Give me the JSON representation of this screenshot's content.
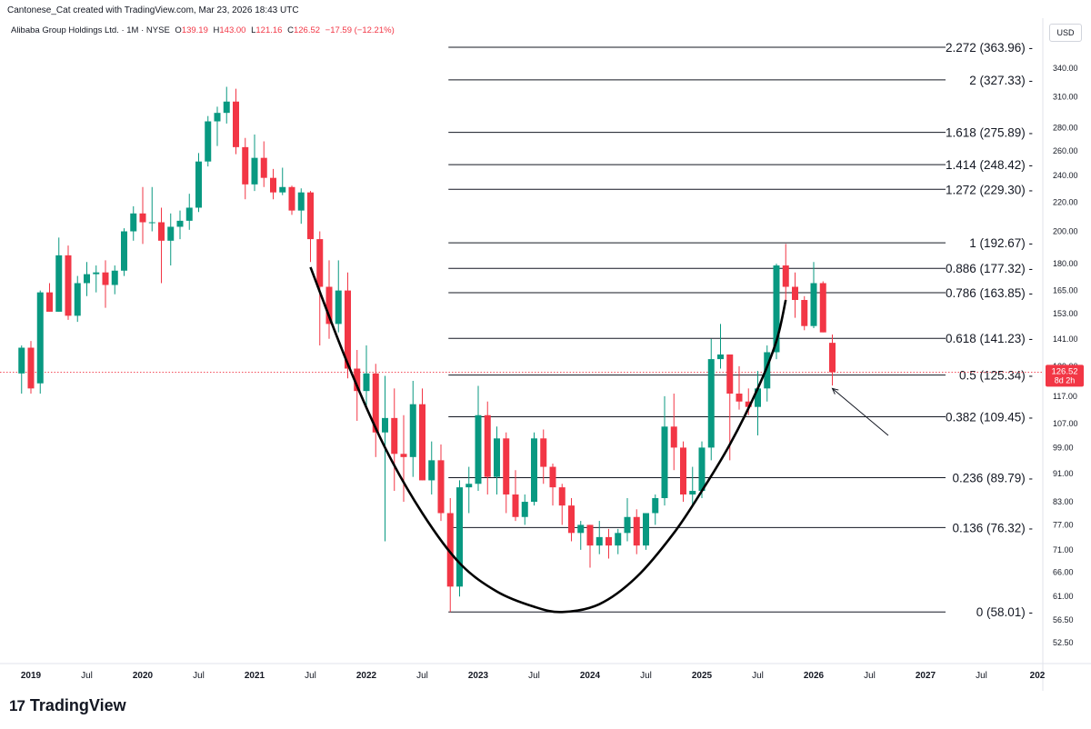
{
  "header": {
    "attribution": "Cantonese_Cat created with TradingView.com, Mar 23, 2026 18:43 UTC"
  },
  "symbol_line": {
    "name": "Alibaba Group Holdings Ltd. · 1M · NYSE",
    "o_label": "O",
    "o_value": "139.19",
    "h_label": "H",
    "h_value": "143.00",
    "l_label": "L",
    "l_value": "121.16",
    "c_label": "C",
    "c_value": "126.52",
    "change": "−17.59 (−12.21%)"
  },
  "currency": "USD",
  "footer": {
    "logo_mark": "17",
    "logo_text": "TradingView"
  },
  "colors": {
    "up": "#089981",
    "down": "#f23645",
    "fib_line": "#131722",
    "grid": "#ffffff"
  },
  "chart_data": {
    "type": "candlestick",
    "symbol": "Alibaba Group Holdings Ltd.",
    "interval": "1M",
    "y_scale": "log",
    "ylim": [
      48,
      420
    ],
    "xlim": [
      "2019-01",
      "2028-07"
    ],
    "y_ticks": [
      "52.50",
      "56.50",
      "61.00",
      "66.00",
      "71.00",
      "77.00",
      "83.00",
      "91.00",
      "99.00",
      "107.00",
      "117.00",
      "129.00",
      "141.00",
      "153.00",
      "165.00",
      "180.00",
      "200.00",
      "220.00",
      "240.00",
      "260.00",
      "280.00",
      "310.00",
      "340.00"
    ],
    "x_ticks": [
      {
        "label": "2019",
        "date": "2019-01"
      },
      {
        "label": "Jul",
        "date": "2019-07"
      },
      {
        "label": "2020",
        "date": "2020-01"
      },
      {
        "label": "Jul",
        "date": "2020-07"
      },
      {
        "label": "2021",
        "date": "2021-01"
      },
      {
        "label": "Jul",
        "date": "2021-07"
      },
      {
        "label": "2022",
        "date": "2022-01"
      },
      {
        "label": "Jul",
        "date": "2022-07"
      },
      {
        "label": "2023",
        "date": "2023-01"
      },
      {
        "label": "Jul",
        "date": "2023-07"
      },
      {
        "label": "2024",
        "date": "2024-01"
      },
      {
        "label": "Jul",
        "date": "2024-07"
      },
      {
        "label": "2025",
        "date": "2025-01"
      },
      {
        "label": "Jul",
        "date": "2025-07"
      },
      {
        "label": "2026",
        "date": "2026-01"
      },
      {
        "label": "Jul",
        "date": "2026-07"
      },
      {
        "label": "2027",
        "date": "2027-01"
      },
      {
        "label": "Jul",
        "date": "2027-07"
      },
      {
        "label": "202",
        "date": "2028-01"
      }
    ],
    "fib_levels": [
      {
        "label": "2.272 (363.96)",
        "value": 363.96
      },
      {
        "label": "2 (327.33)",
        "value": 327.33
      },
      {
        "label": "1.618 (275.89)",
        "value": 275.89
      },
      {
        "label": "1.414 (248.42)",
        "value": 248.42
      },
      {
        "label": "1.272 (229.30)",
        "value": 229.3
      },
      {
        "label": "1 (192.67)",
        "value": 192.67
      },
      {
        "label": "0.886 (177.32)",
        "value": 177.32
      },
      {
        "label": "0.786 (163.85)",
        "value": 163.85
      },
      {
        "label": "0.618 (141.23)",
        "value": 141.23
      },
      {
        "label": "0.5 (125.34)",
        "value": 125.34
      },
      {
        "label": "0.382 (109.45)",
        "value": 109.45
      },
      {
        "label": "0.236 (89.79)",
        "value": 89.79
      },
      {
        "label": "0.136 (76.32)",
        "value": 76.32
      },
      {
        "label": "0 (58.01)",
        "value": 58.01
      }
    ],
    "fib_start_date": "2022-10",
    "last_price": {
      "value": 126.52,
      "label": "126.52",
      "countdown": "8d 2h"
    },
    "cup_curve": [
      [
        "2021-07",
        178
      ],
      [
        "2021-11",
        130
      ],
      [
        "2022-03",
        99
      ],
      [
        "2022-07",
        80
      ],
      [
        "2022-11",
        68
      ],
      [
        "2023-03",
        62
      ],
      [
        "2023-07",
        59
      ],
      [
        "2023-10",
        58
      ],
      [
        "2024-02",
        59.5
      ],
      [
        "2024-06",
        65
      ],
      [
        "2024-10",
        75
      ],
      [
        "2025-01",
        86
      ],
      [
        "2025-04",
        100
      ],
      [
        "2025-07",
        120
      ],
      [
        "2025-09",
        140
      ],
      [
        "2025-10",
        160
      ]
    ],
    "arrow": {
      "from": [
        "2026-09",
        103
      ],
      "to": [
        "2026-03",
        120
      ]
    },
    "candles": [
      [
        "2018-12",
        126,
        138,
        118,
        137
      ],
      [
        "2019-01",
        137,
        140,
        118,
        120
      ],
      [
        "2019-02",
        122,
        165,
        118,
        164
      ],
      [
        "2019-03",
        164,
        169,
        154,
        154
      ],
      [
        "2019-04",
        154,
        196,
        154,
        185
      ],
      [
        "2019-05",
        185,
        191,
        150,
        152
      ],
      [
        "2019-06",
        152,
        173,
        149,
        169
      ],
      [
        "2019-07",
        169,
        181,
        162,
        174
      ],
      [
        "2019-08",
        174,
        179,
        164,
        175
      ],
      [
        "2019-09",
        175,
        182,
        156,
        168
      ],
      [
        "2019-10",
        168,
        179,
        163,
        176
      ],
      [
        "2019-11",
        176,
        202,
        173,
        200
      ],
      [
        "2019-12",
        200,
        217,
        194,
        212
      ],
      [
        "2020-01",
        212,
        231,
        192,
        206
      ],
      [
        "2020-02",
        206,
        231,
        200,
        206
      ],
      [
        "2020-03",
        206,
        216,
        169,
        194
      ],
      [
        "2020-04",
        194,
        212,
        179,
        203
      ],
      [
        "2020-05",
        203,
        214,
        195,
        207
      ],
      [
        "2020-06",
        207,
        226,
        201,
        216
      ],
      [
        "2020-07",
        216,
        258,
        213,
        251
      ],
      [
        "2020-08",
        251,
        291,
        247,
        286
      ],
      [
        "2020-09",
        286,
        300,
        264,
        294
      ],
      [
        "2020-10",
        294,
        320,
        284,
        305
      ],
      [
        "2020-11",
        305,
        318,
        257,
        263
      ],
      [
        "2020-12",
        263,
        271,
        222,
        233
      ],
      [
        "2021-01",
        233,
        274,
        228,
        254
      ],
      [
        "2021-02",
        254,
        268,
        231,
        238
      ],
      [
        "2021-03",
        238,
        245,
        222,
        227
      ],
      [
        "2021-04",
        227,
        246,
        225,
        231
      ],
      [
        "2021-05",
        231,
        232,
        211,
        214
      ],
      [
        "2021-06",
        214,
        230,
        205,
        227
      ],
      [
        "2021-07",
        227,
        228,
        181,
        195
      ],
      [
        "2021-08",
        195,
        200,
        138,
        167
      ],
      [
        "2021-09",
        167,
        182,
        141,
        148
      ],
      [
        "2021-10",
        148,
        182,
        144,
        165
      ],
      [
        "2021-11",
        165,
        175,
        124,
        128
      ],
      [
        "2021-12",
        128,
        136,
        108,
        119
      ],
      [
        "2022-01",
        119,
        138,
        113,
        126
      ],
      [
        "2022-02",
        126,
        130,
        96,
        104
      ],
      [
        "2022-03",
        104,
        125,
        73,
        109
      ],
      [
        "2022-04",
        109,
        120,
        86,
        97
      ],
      [
        "2022-05",
        97,
        110,
        83,
        96
      ],
      [
        "2022-06",
        96,
        123,
        90,
        114
      ],
      [
        "2022-07",
        114,
        120,
        89,
        89
      ],
      [
        "2022-08",
        89,
        101,
        85,
        95
      ],
      [
        "2022-09",
        95,
        100,
        78,
        80
      ],
      [
        "2022-10",
        80,
        84,
        58,
        63
      ],
      [
        "2022-11",
        63,
        89,
        61,
        87
      ],
      [
        "2022-12",
        87,
        93,
        80,
        88
      ],
      [
        "2023-01",
        88,
        121,
        86,
        110
      ],
      [
        "2023-02",
        110,
        115,
        85,
        90
      ],
      [
        "2023-03",
        90,
        106,
        85,
        102
      ],
      [
        "2023-04",
        102,
        104,
        80,
        85
      ],
      [
        "2023-05",
        85,
        92,
        78,
        79
      ],
      [
        "2023-06",
        79,
        85,
        77,
        83
      ],
      [
        "2023-07",
        83,
        104,
        82,
        102
      ],
      [
        "2023-08",
        102,
        105,
        88,
        93
      ],
      [
        "2023-09",
        93,
        94,
        82,
        87
      ],
      [
        "2023-10",
        87,
        88,
        77,
        82
      ],
      [
        "2023-11",
        82,
        84,
        73,
        75
      ],
      [
        "2023-12",
        75,
        78,
        71,
        77
      ],
      [
        "2024-01",
        77,
        77,
        67,
        72
      ],
      [
        "2024-02",
        72,
        78,
        70,
        74
      ],
      [
        "2024-03",
        74,
        76,
        69,
        72
      ],
      [
        "2024-04",
        72,
        76,
        70,
        75
      ],
      [
        "2024-05",
        75,
        84,
        73,
        79
      ],
      [
        "2024-06",
        79,
        81,
        70,
        72
      ],
      [
        "2024-07",
        72,
        80,
        71,
        80
      ],
      [
        "2024-08",
        80,
        85,
        77,
        84
      ],
      [
        "2024-09",
        84,
        117,
        82,
        106
      ],
      [
        "2024-10",
        106,
        118,
        92,
        99
      ],
      [
        "2024-11",
        99,
        101,
        83,
        85
      ],
      [
        "2024-12",
        85,
        93,
        82,
        86
      ],
      [
        "2025-01",
        86,
        101,
        84,
        99
      ],
      [
        "2025-02",
        99,
        141,
        95,
        132
      ],
      [
        "2025-03",
        132,
        148,
        128,
        134
      ],
      [
        "2025-04",
        134,
        134,
        95,
        118
      ],
      [
        "2025-05",
        118,
        129,
        112,
        115
      ],
      [
        "2025-06",
        115,
        120,
        110,
        113
      ],
      [
        "2025-07",
        113,
        127,
        103,
        120
      ],
      [
        "2025-08",
        120,
        138,
        115,
        135
      ],
      [
        "2025-09",
        135,
        180,
        132,
        179
      ],
      [
        "2025-10",
        179,
        192,
        159,
        167
      ],
      [
        "2025-11",
        167,
        175,
        151,
        160
      ],
      [
        "2025-12",
        160,
        162,
        145,
        147
      ],
      [
        "2026-01",
        147,
        181,
        146,
        169
      ],
      [
        "2026-02",
        169,
        170,
        144,
        144
      ],
      [
        "2026-03",
        139.19,
        143.0,
        121.16,
        126.52
      ]
    ]
  }
}
